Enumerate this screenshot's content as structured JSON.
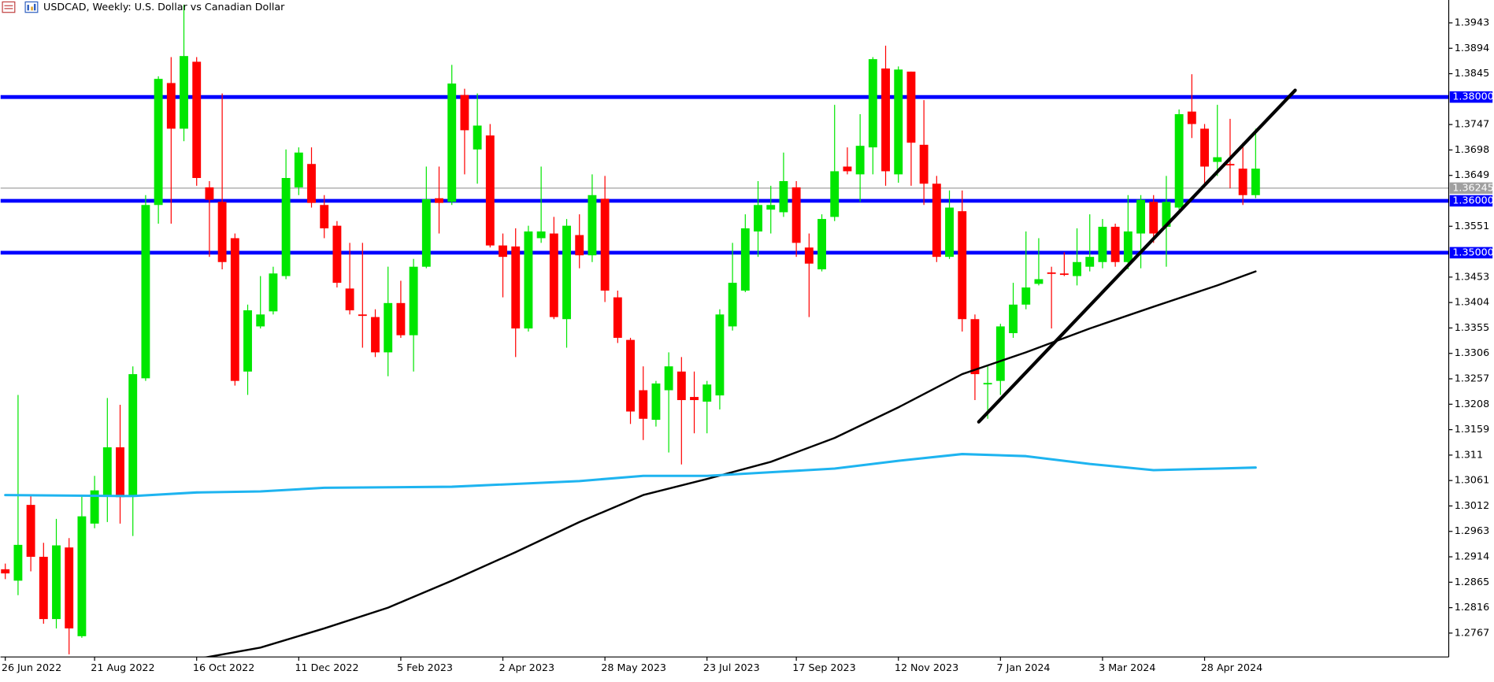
{
  "chart_data": {
    "type": "candlestick",
    "title": "USDCAD, Weekly:  U.S. Dollar vs Canadian Dollar",
    "categories": [
      "26 Jun 2022",
      null,
      null,
      null,
      null,
      null,
      null,
      "21 Aug 2022",
      null,
      null,
      null,
      null,
      null,
      null,
      null,
      "16 Oct 2022",
      null,
      null,
      null,
      null,
      null,
      null,
      null,
      "11 Dec 2022",
      null,
      null,
      null,
      null,
      null,
      null,
      null,
      "5 Feb 2023",
      null,
      null,
      null,
      null,
      null,
      null,
      null,
      "2 Apr 2023",
      null,
      null,
      null,
      null,
      null,
      null,
      null,
      "28 May 2023",
      null,
      null,
      null,
      null,
      null,
      null,
      null,
      "23 Jul 2023",
      null,
      null,
      null,
      null,
      null,
      null,
      "17 Sep 2023",
      null,
      null,
      null,
      null,
      null,
      null,
      null,
      "12 Nov 2023",
      null,
      null,
      null,
      null,
      null,
      null,
      null,
      "7 Jan 2024",
      null,
      null,
      null,
      null,
      null,
      null,
      null,
      "3 Mar 2024",
      null,
      null,
      null,
      null,
      null,
      null,
      null,
      "28 Apr 2024",
      null,
      null,
      null,
      null
    ],
    "open": [
      1.289,
      1.2868,
      1.3014,
      1.2914,
      1.2794,
      1.2932,
      1.2761,
      1.2978,
      1.3033,
      1.3125,
      1.3033,
      1.3258,
      1.3592,
      1.3827,
      1.3739,
      1.3868,
      1.3626,
      1.3598,
      1.3528,
      1.3271,
      1.3358,
      1.3387,
      1.3455,
      1.3626,
      1.3671,
      1.3592,
      1.3552,
      1.3431,
      1.3381,
      1.3376,
      1.3308,
      1.3403,
      1.3341,
      1.3473,
      1.3605,
      1.3598,
      1.3804,
      1.3699,
      1.3726,
      1.3514,
      1.3512,
      1.3354,
      1.3528,
      1.3537,
      1.3372,
      1.3534,
      1.3495,
      1.3604,
      1.3414,
      1.3332,
      1.3235,
      1.3178,
      1.3235,
      1.3271,
      1.3222,
      1.3213,
      1.3225,
      1.3358,
      1.3427,
      1.3541,
      1.3583,
      1.3578,
      1.3626,
      1.351,
      1.3468,
      1.3569,
      1.3666,
      1.3651,
      1.3703,
      1.3855,
      1.3651,
      1.3849,
      1.3708,
      1.3633,
      1.3492,
      1.358,
      1.3372,
      1.3247,
      1.3253,
      1.3345,
      1.34,
      1.344,
      1.3462,
      1.346,
      1.3455,
      1.3473,
      1.3482,
      1.355,
      1.3482,
      1.3537,
      1.3598,
      1.355,
      1.3587,
      1.3772,
      1.3739,
      1.3675,
      1.3671,
      1.3662,
      1.3611
    ],
    "high": [
      1.2901,
      1.3226,
      1.3033,
      1.2941,
      1.2987,
      1.295,
      1.3033,
      1.307,
      1.322,
      1.3207,
      1.3281,
      1.3611,
      1.384,
      1.3877,
      1.3978,
      1.3877,
      1.3638,
      1.3807,
      1.3537,
      1.34,
      1.3455,
      1.3473,
      1.3699,
      1.3703,
      1.3703,
      1.3611,
      1.3561,
      1.3519,
      1.3519,
      1.3391,
      1.3473,
      1.3446,
      1.3488,
      1.3666,
      1.3666,
      1.3862,
      1.3816,
      1.3807,
      1.3748,
      1.3537,
      1.3547,
      1.3552,
      1.3666,
      1.3569,
      1.3565,
      1.3574,
      1.3651,
      1.3648,
      1.3427,
      1.3336,
      1.3281,
      1.3253,
      1.3308,
      1.3299,
      1.3271,
      1.3253,
      1.3391,
      1.3519,
      1.3574,
      1.3638,
      1.3629,
      1.3693,
      1.3638,
      1.3537,
      1.3574,
      1.3785,
      1.3703,
      1.3767,
      1.3877,
      1.3899,
      1.3859,
      1.3849,
      1.3794,
      1.3648,
      1.362,
      1.362,
      1.3381,
      1.3281,
      1.3363,
      1.3442,
      1.3541,
      1.3528,
      1.3473,
      1.3501,
      1.3547,
      1.3574,
      1.3565,
      1.3556,
      1.3611,
      1.3611,
      1.3611,
      1.3648,
      1.3776,
      1.3844,
      1.3748,
      1.3785,
      1.3758,
      1.3712,
      1.3739
    ],
    "low": [
      1.2871,
      1.284,
      1.2886,
      1.2785,
      1.2776,
      1.2726,
      1.2758,
      1.2969,
      1.2981,
      1.2978,
      1.2954,
      1.3253,
      1.3556,
      1.3556,
      1.3715,
      1.3629,
      1.3492,
      1.3468,
      1.3244,
      1.3226,
      1.3354,
      1.3381,
      1.3449,
      1.3611,
      1.3587,
      1.3528,
      1.3433,
      1.3381,
      1.3317,
      1.3299,
      1.3262,
      1.3336,
      1.3271,
      1.347,
      1.3537,
      1.3592,
      1.3651,
      1.3633,
      1.351,
      1.3414,
      1.3299,
      1.3348,
      1.3519,
      1.3372,
      1.3317,
      1.347,
      1.3482,
      1.3405,
      1.3326,
      1.317,
      1.3139,
      1.3165,
      1.3115,
      1.3092,
      1.3152,
      1.3152,
      1.3198,
      1.335,
      1.3424,
      1.3492,
      1.3537,
      1.3569,
      1.3492,
      1.3376,
      1.3464,
      1.3561,
      1.3651,
      1.3598,
      1.3651,
      1.3629,
      1.3635,
      1.3629,
      1.3592,
      1.3482,
      1.3488,
      1.3348,
      1.3216,
      1.318,
      1.3226,
      1.3336,
      1.3391,
      1.3437,
      1.3354,
      1.3455,
      1.3437,
      1.3464,
      1.347,
      1.3473,
      1.3468,
      1.347,
      1.3519,
      1.3473,
      1.3583,
      1.3721,
      1.3629,
      1.3648,
      1.3624,
      1.3592,
      1.3605
    ],
    "close": [
      1.2882,
      1.2937,
      1.2914,
      1.2794,
      1.2936,
      1.2776,
      1.2992,
      1.3042,
      1.3125,
      1.3029,
      1.3266,
      1.3592,
      1.3835,
      1.3739,
      1.3879,
      1.3644,
      1.3602,
      1.3482,
      1.3253,
      1.3389,
      1.3381,
      1.346,
      1.3644,
      1.3693,
      1.3596,
      1.3547,
      1.3442,
      1.3389,
      1.338,
      1.3308,
      1.3403,
      1.3341,
      1.3473,
      1.3603,
      1.3596,
      1.3826,
      1.3736,
      1.3745,
      1.3514,
      1.3492,
      1.3354,
      1.3541,
      1.3541,
      1.3376,
      1.3552,
      1.3495,
      1.3611,
      1.3427,
      1.3336,
      1.3194,
      1.318,
      1.3248,
      1.3281,
      1.3216,
      1.3216,
      1.3246,
      1.3381,
      1.3442,
      1.3547,
      1.3592,
      1.3592,
      1.3638,
      1.3519,
      1.3479,
      1.3565,
      1.3657,
      1.3657,
      1.3706,
      1.3873,
      1.3657,
      1.3853,
      1.3712,
      1.3633,
      1.3492,
      1.3587,
      1.3372,
      1.3266,
      1.3249,
      1.3358,
      1.34,
      1.3433,
      1.3449,
      1.346,
      1.3458,
      1.3482,
      1.3492,
      1.355,
      1.3482,
      1.3541,
      1.3602,
      1.3537,
      1.3598,
      1.3767,
      1.3748,
      1.3666,
      1.3684,
      1.367,
      1.3611,
      1.3662
    ],
    "up_color": "#00e600",
    "down_color": "#ff0000",
    "lines": [
      {
        "color": "#000000",
        "width": 2,
        "x": [
          15,
          20,
          25,
          30,
          35,
          40,
          45,
          50,
          55,
          60,
          65,
          70,
          75,
          80,
          85,
          90,
          95,
          98
        ],
        "values": [
          1.2717,
          1.2739,
          1.2776,
          1.2816,
          1.2868,
          1.2923,
          1.2981,
          1.3033,
          1.3064,
          1.3097,
          1.3143,
          1.3202,
          1.3266,
          1.3308,
          1.3354,
          1.3396,
          1.3437,
          1.3464
        ]
      },
      {
        "color": "#1eb4f0",
        "width": 2.5,
        "x": [
          0,
          10,
          15,
          20,
          25,
          35,
          45,
          50,
          55,
          60,
          65,
          70,
          75,
          80,
          85,
          90,
          95,
          98
        ],
        "values": [
          1.3033,
          1.3031,
          1.3038,
          1.304,
          1.3047,
          1.3049,
          1.306,
          1.307,
          1.307,
          1.3077,
          1.3084,
          1.3099,
          1.3112,
          1.3108,
          1.3093,
          1.3081,
          1.3084,
          1.3086
        ]
      },
      {
        "color": "#000000",
        "width": 3.5,
        "x": [
          76.3,
          101.1
        ],
        "values": [
          1.3174,
          1.3813
        ]
      }
    ],
    "levels": [
      {
        "value": 1.38,
        "label": "1.38000",
        "color": "#0000ff"
      },
      {
        "value": 1.36,
        "label": "1.36000",
        "color": "#0000ff"
      },
      {
        "value": 1.35,
        "label": "1.35000",
        "color": "#0000ff"
      }
    ],
    "last_price": {
      "value": 1.36245,
      "label": "1.36245",
      "color": "#a0a0a0"
    },
    "ylim": [
      1.2721,
      1.3987
    ],
    "yticks": [
      1.3943,
      1.3894,
      1.3845,
      1.3747,
      1.3698,
      1.3649,
      1.3551,
      1.3453,
      1.3404,
      1.3355,
      1.3306,
      1.3257,
      1.3208,
      1.3159,
      1.311,
      1.3061,
      1.3012,
      1.2963,
      1.2914,
      1.2865,
      1.2816,
      1.2767
    ]
  }
}
